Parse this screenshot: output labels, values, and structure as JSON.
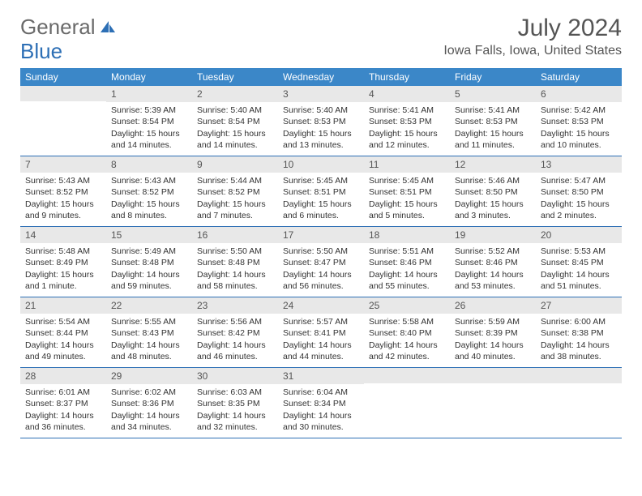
{
  "logo": {
    "text_a": "General",
    "text_b": "Blue"
  },
  "title": "July 2024",
  "location": "Iowa Falls, Iowa, United States",
  "weekdays": [
    "Sunday",
    "Monday",
    "Tuesday",
    "Wednesday",
    "Thursday",
    "Friday",
    "Saturday"
  ],
  "colors": {
    "header_bg": "#3b87c8",
    "header_text": "#ffffff",
    "daynum_bg": "#e8e8e8",
    "border": "#2d6fb5",
    "logo_gray": "#6a6a6a",
    "logo_blue": "#2d6fb5",
    "body_text": "#333333"
  },
  "days": [
    {
      "n": "",
      "sunrise": "",
      "sunset": "",
      "daylight": ""
    },
    {
      "n": "1",
      "sunrise": "Sunrise: 5:39 AM",
      "sunset": "Sunset: 8:54 PM",
      "daylight": "Daylight: 15 hours and 14 minutes."
    },
    {
      "n": "2",
      "sunrise": "Sunrise: 5:40 AM",
      "sunset": "Sunset: 8:54 PM",
      "daylight": "Daylight: 15 hours and 14 minutes."
    },
    {
      "n": "3",
      "sunrise": "Sunrise: 5:40 AM",
      "sunset": "Sunset: 8:53 PM",
      "daylight": "Daylight: 15 hours and 13 minutes."
    },
    {
      "n": "4",
      "sunrise": "Sunrise: 5:41 AM",
      "sunset": "Sunset: 8:53 PM",
      "daylight": "Daylight: 15 hours and 12 minutes."
    },
    {
      "n": "5",
      "sunrise": "Sunrise: 5:41 AM",
      "sunset": "Sunset: 8:53 PM",
      "daylight": "Daylight: 15 hours and 11 minutes."
    },
    {
      "n": "6",
      "sunrise": "Sunrise: 5:42 AM",
      "sunset": "Sunset: 8:53 PM",
      "daylight": "Daylight: 15 hours and 10 minutes."
    },
    {
      "n": "7",
      "sunrise": "Sunrise: 5:43 AM",
      "sunset": "Sunset: 8:52 PM",
      "daylight": "Daylight: 15 hours and 9 minutes."
    },
    {
      "n": "8",
      "sunrise": "Sunrise: 5:43 AM",
      "sunset": "Sunset: 8:52 PM",
      "daylight": "Daylight: 15 hours and 8 minutes."
    },
    {
      "n": "9",
      "sunrise": "Sunrise: 5:44 AM",
      "sunset": "Sunset: 8:52 PM",
      "daylight": "Daylight: 15 hours and 7 minutes."
    },
    {
      "n": "10",
      "sunrise": "Sunrise: 5:45 AM",
      "sunset": "Sunset: 8:51 PM",
      "daylight": "Daylight: 15 hours and 6 minutes."
    },
    {
      "n": "11",
      "sunrise": "Sunrise: 5:45 AM",
      "sunset": "Sunset: 8:51 PM",
      "daylight": "Daylight: 15 hours and 5 minutes."
    },
    {
      "n": "12",
      "sunrise": "Sunrise: 5:46 AM",
      "sunset": "Sunset: 8:50 PM",
      "daylight": "Daylight: 15 hours and 3 minutes."
    },
    {
      "n": "13",
      "sunrise": "Sunrise: 5:47 AM",
      "sunset": "Sunset: 8:50 PM",
      "daylight": "Daylight: 15 hours and 2 minutes."
    },
    {
      "n": "14",
      "sunrise": "Sunrise: 5:48 AM",
      "sunset": "Sunset: 8:49 PM",
      "daylight": "Daylight: 15 hours and 1 minute."
    },
    {
      "n": "15",
      "sunrise": "Sunrise: 5:49 AM",
      "sunset": "Sunset: 8:48 PM",
      "daylight": "Daylight: 14 hours and 59 minutes."
    },
    {
      "n": "16",
      "sunrise": "Sunrise: 5:50 AM",
      "sunset": "Sunset: 8:48 PM",
      "daylight": "Daylight: 14 hours and 58 minutes."
    },
    {
      "n": "17",
      "sunrise": "Sunrise: 5:50 AM",
      "sunset": "Sunset: 8:47 PM",
      "daylight": "Daylight: 14 hours and 56 minutes."
    },
    {
      "n": "18",
      "sunrise": "Sunrise: 5:51 AM",
      "sunset": "Sunset: 8:46 PM",
      "daylight": "Daylight: 14 hours and 55 minutes."
    },
    {
      "n": "19",
      "sunrise": "Sunrise: 5:52 AM",
      "sunset": "Sunset: 8:46 PM",
      "daylight": "Daylight: 14 hours and 53 minutes."
    },
    {
      "n": "20",
      "sunrise": "Sunrise: 5:53 AM",
      "sunset": "Sunset: 8:45 PM",
      "daylight": "Daylight: 14 hours and 51 minutes."
    },
    {
      "n": "21",
      "sunrise": "Sunrise: 5:54 AM",
      "sunset": "Sunset: 8:44 PM",
      "daylight": "Daylight: 14 hours and 49 minutes."
    },
    {
      "n": "22",
      "sunrise": "Sunrise: 5:55 AM",
      "sunset": "Sunset: 8:43 PM",
      "daylight": "Daylight: 14 hours and 48 minutes."
    },
    {
      "n": "23",
      "sunrise": "Sunrise: 5:56 AM",
      "sunset": "Sunset: 8:42 PM",
      "daylight": "Daylight: 14 hours and 46 minutes."
    },
    {
      "n": "24",
      "sunrise": "Sunrise: 5:57 AM",
      "sunset": "Sunset: 8:41 PM",
      "daylight": "Daylight: 14 hours and 44 minutes."
    },
    {
      "n": "25",
      "sunrise": "Sunrise: 5:58 AM",
      "sunset": "Sunset: 8:40 PM",
      "daylight": "Daylight: 14 hours and 42 minutes."
    },
    {
      "n": "26",
      "sunrise": "Sunrise: 5:59 AM",
      "sunset": "Sunset: 8:39 PM",
      "daylight": "Daylight: 14 hours and 40 minutes."
    },
    {
      "n": "27",
      "sunrise": "Sunrise: 6:00 AM",
      "sunset": "Sunset: 8:38 PM",
      "daylight": "Daylight: 14 hours and 38 minutes."
    },
    {
      "n": "28",
      "sunrise": "Sunrise: 6:01 AM",
      "sunset": "Sunset: 8:37 PM",
      "daylight": "Daylight: 14 hours and 36 minutes."
    },
    {
      "n": "29",
      "sunrise": "Sunrise: 6:02 AM",
      "sunset": "Sunset: 8:36 PM",
      "daylight": "Daylight: 14 hours and 34 minutes."
    },
    {
      "n": "30",
      "sunrise": "Sunrise: 6:03 AM",
      "sunset": "Sunset: 8:35 PM",
      "daylight": "Daylight: 14 hours and 32 minutes."
    },
    {
      "n": "31",
      "sunrise": "Sunrise: 6:04 AM",
      "sunset": "Sunset: 8:34 PM",
      "daylight": "Daylight: 14 hours and 30 minutes."
    },
    {
      "n": "",
      "sunrise": "",
      "sunset": "",
      "daylight": ""
    },
    {
      "n": "",
      "sunrise": "",
      "sunset": "",
      "daylight": ""
    },
    {
      "n": "",
      "sunrise": "",
      "sunset": "",
      "daylight": ""
    }
  ]
}
